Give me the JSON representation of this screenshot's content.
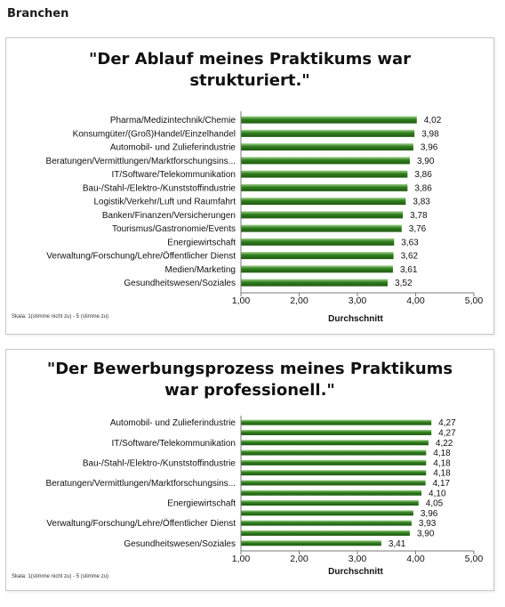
{
  "page": {
    "heading": "Branchen"
  },
  "colors": {
    "bar_fill": "#2f7d1c",
    "bar_highlight": "#9ed18a",
    "axis": "#7a7a7a"
  },
  "chart_data": [
    {
      "type": "bar",
      "orientation": "horizontal",
      "title_line1": "\"Der Ablauf meines Praktikums war",
      "title_line2": "strukturiert.\"",
      "xlabel": "Durchschnitt",
      "xlim": [
        1,
        5
      ],
      "xticks": [
        "1,00",
        "2,00",
        "3,00",
        "4,00",
        "5,00"
      ],
      "grid": false,
      "note": "Skala: 1(stimme nicht zu) - 5 (stimme zu)",
      "categories": [
        "Pharma/Medizintechnik/Chemie",
        "Konsumgüter/(Groß)Handel/Einzelhandel",
        "Automobil- und Zulieferindustrie",
        "Beratungen/Vermittlungen/Marktforschungsins...",
        "IT/Software/Telekommunikation",
        "Bau-/Stahl-/Elektro-/Kunststoffindustrie",
        "Logistik/Verkehr/Luft und Raumfahrt",
        "Banken/Finanzen/Versicherungen",
        "Tourismus/Gastronomie/Events",
        "Energiewirtschaft",
        "Verwaltung/Forschung/Lehre/Öffentlicher Dienst",
        "Medien/Marketing",
        "Gesundheitswesen/Soziales"
      ],
      "values": [
        4.02,
        3.98,
        3.96,
        3.9,
        3.86,
        3.86,
        3.83,
        3.78,
        3.76,
        3.63,
        3.62,
        3.61,
        3.52
      ],
      "value_labels": [
        "4,02",
        "3,98",
        "3,96",
        "3,90",
        "3,86",
        "3,86",
        "3,83",
        "3,78",
        "3,76",
        "3,63",
        "3,62",
        "3,61",
        "3,52"
      ]
    },
    {
      "type": "bar",
      "orientation": "horizontal",
      "title_line1": "\"Der Bewerbungsprozess meines Praktikums",
      "title_line2": "war professionell.\"",
      "xlabel": "Durchschnitt",
      "xlim": [
        1,
        5
      ],
      "xticks": [
        "1,00",
        "2,00",
        "3,00",
        "4,00",
        "5,00"
      ],
      "grid": false,
      "note": "Skala: 1(stimme nicht zu) - 5 (stimme zu)",
      "categories": [
        "Automobil- und Zulieferindustrie",
        "",
        "IT/Software/Telekommunikation",
        "",
        "Bau-/Stahl-/Elektro-/Kunststoffindustrie",
        "",
        "Beratungen/Vermittlungen/Marktforschungsins...",
        "",
        "Energiewirtschaft",
        "",
        "Verwaltung/Forschung/Lehre/Öffentlicher Dienst",
        "",
        "Gesundheitswesen/Soziales"
      ],
      "values": [
        4.27,
        4.27,
        4.22,
        4.18,
        4.18,
        4.18,
        4.17,
        4.1,
        4.05,
        3.96,
        3.93,
        3.9,
        3.41
      ],
      "value_labels": [
        "4,27",
        "4,27",
        "4,22",
        "4,18",
        "4,18",
        "4,18",
        "4,17",
        "4,10",
        "4,05",
        "3,96",
        "3,93",
        "3,90",
        "3,41"
      ]
    }
  ]
}
